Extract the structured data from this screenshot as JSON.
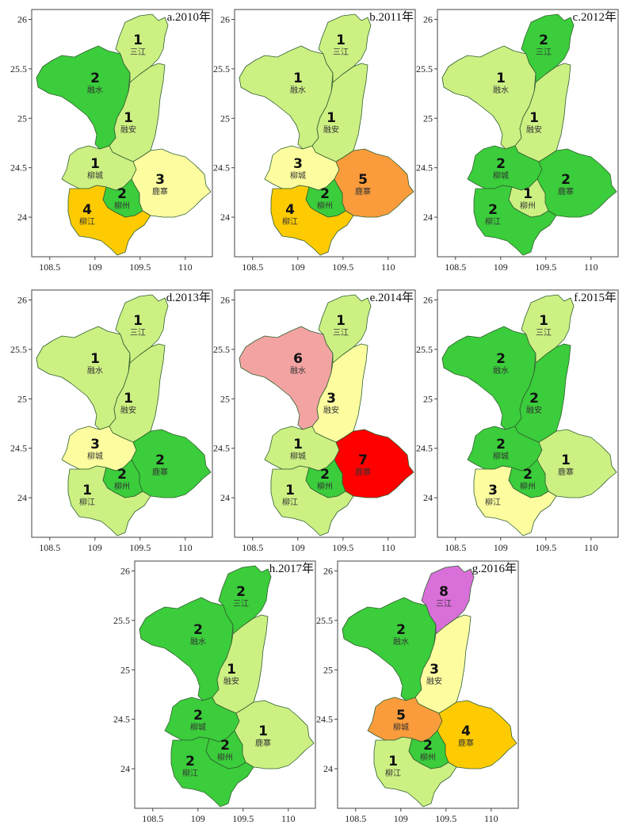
{
  "region_names": {
    "sanjiang": "三江",
    "rongshui": "融水",
    "rongan": "融安",
    "liucheng": "柳城",
    "luzhai": "鹿寨",
    "liuzhou": "柳州",
    "liujiang": "柳江"
  },
  "rank_colors": {
    "1": "#cdf083",
    "2": "#3bcd3b",
    "3": "#fdfda0",
    "4": "#fecb02",
    "5": "#fa9c3c",
    "6": "#f4a3a3",
    "7": "#fe0000",
    "8": "#d96fd9"
  },
  "axes": {
    "x_ticks": [
      "108.5",
      "109",
      "109.5",
      "110"
    ],
    "y_ticks": [
      "26",
      "25.5",
      "25",
      "24.5",
      "24"
    ],
    "lon_range": [
      108.3,
      110.3
    ],
    "lat_range": [
      23.6,
      26.1
    ]
  },
  "panels": [
    {
      "title": "a.2010年",
      "ranks": {
        "sanjiang": 1,
        "rongshui": 2,
        "rongan": 1,
        "liucheng": 1,
        "luzhai": 3,
        "liuzhou": 2,
        "liujiang": 4
      }
    },
    {
      "title": "b.2011年",
      "ranks": {
        "sanjiang": 1,
        "rongshui": 1,
        "rongan": 1,
        "liucheng": 3,
        "luzhai": 5,
        "liuzhou": 2,
        "liujiang": 4
      }
    },
    {
      "title": "c.2012年",
      "ranks": {
        "sanjiang": 2,
        "rongshui": 1,
        "rongan": 1,
        "liucheng": 2,
        "luzhai": 2,
        "liuzhou": 1,
        "liujiang": 2
      }
    },
    {
      "title": "d.2013年",
      "ranks": {
        "sanjiang": 1,
        "rongshui": 1,
        "rongan": 1,
        "liucheng": 3,
        "luzhai": 2,
        "liuzhou": 2,
        "liujiang": 1
      }
    },
    {
      "title": "e.2014年",
      "ranks": {
        "sanjiang": 1,
        "rongshui": 6,
        "rongan": 3,
        "liucheng": 1,
        "luzhai": 7,
        "liuzhou": 2,
        "liujiang": 1
      }
    },
    {
      "title": "f.2015年",
      "ranks": {
        "sanjiang": 1,
        "rongshui": 2,
        "rongan": 2,
        "liucheng": 2,
        "luzhai": 1,
        "liuzhou": 2,
        "liujiang": 3
      }
    },
    {
      "title": "h.2017年",
      "ranks": {
        "sanjiang": 2,
        "rongshui": 2,
        "rongan": 1,
        "liucheng": 2,
        "luzhai": 1,
        "liuzhou": 2,
        "liujiang": 2
      }
    },
    {
      "title": "g.2016年",
      "ranks": {
        "sanjiang": 8,
        "rongshui": 2,
        "rongan": 3,
        "liucheng": 5,
        "luzhai": 4,
        "liuzhou": 2,
        "liujiang": 1
      }
    }
  ]
}
